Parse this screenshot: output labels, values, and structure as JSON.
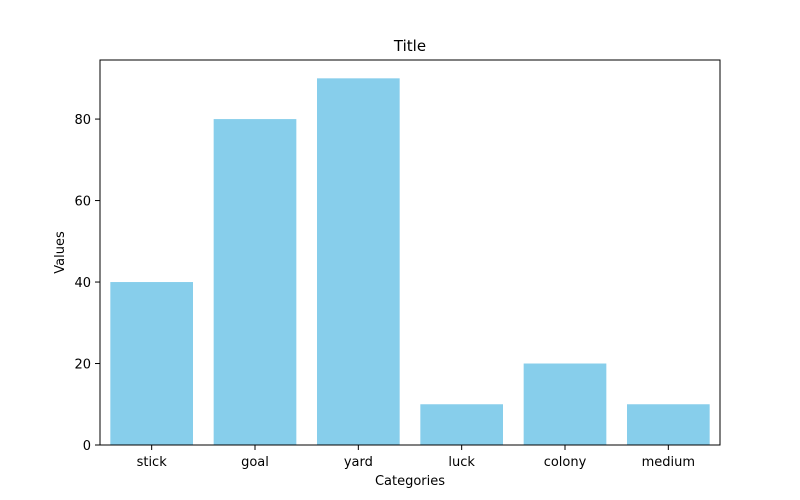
{
  "chart_data": {
    "type": "bar",
    "title": "Title",
    "xlabel": "Categories",
    "ylabel": "Values",
    "categories": [
      "stick",
      "goal",
      "yard",
      "luck",
      "colony",
      "medium"
    ],
    "values": [
      40,
      80,
      90,
      10,
      20,
      10
    ],
    "ylim": [
      0,
      94.5
    ],
    "yticks": [
      0,
      20,
      40,
      60,
      80
    ],
    "bar_color": "#87CEEB",
    "grid": false,
    "legend": "none"
  }
}
